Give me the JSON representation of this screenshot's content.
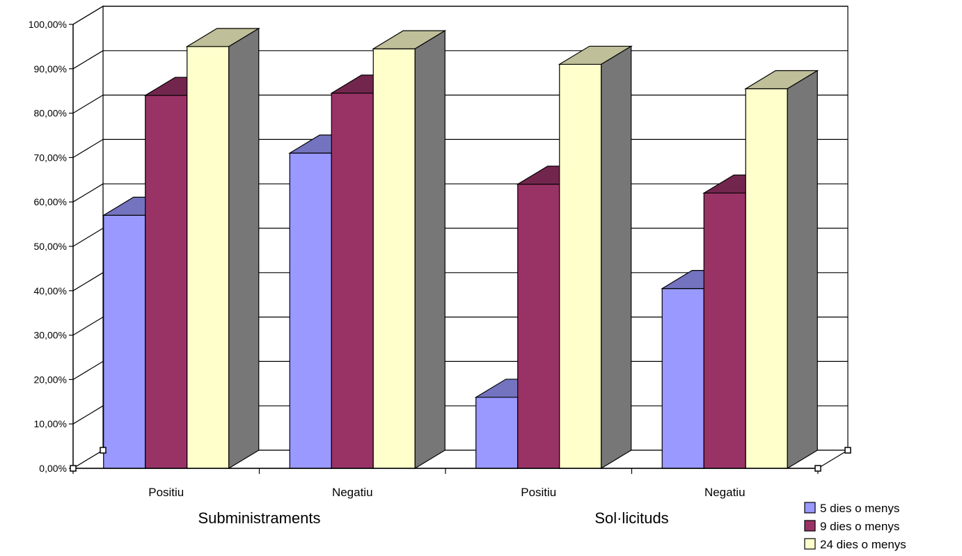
{
  "chart_data": {
    "type": "bar",
    "style": "3d-clustered-column",
    "y_tick_labels": [
      "0,00%",
      "10,00%",
      "20,00%",
      "30,00%",
      "40,00%",
      "50,00%",
      "60,00%",
      "70,00%",
      "80,00%",
      "90,00%",
      "100,00%"
    ],
    "ylim": [
      0,
      100
    ],
    "grid": true,
    "categories": [
      "Positiu",
      "Negatiu",
      "Positiu",
      "Negatiu"
    ],
    "groups": [
      {
        "label": "Subministraments",
        "categories": [
          "Positiu",
          "Negatiu"
        ]
      },
      {
        "label": "Sol·licituds",
        "categories": [
          "Positiu",
          "Negatiu"
        ]
      }
    ],
    "series": [
      {
        "name": "5 dies o menys",
        "color": "#9999ff",
        "values": [
          57,
          71,
          16,
          40.5
        ]
      },
      {
        "name": "9 dies o menys",
        "color": "#993366",
        "values": [
          84,
          84.5,
          64,
          62
        ]
      },
      {
        "name": "24 dies o menys",
        "color": "#ffffcc",
        "values": [
          95,
          94.5,
          91,
          85.5
        ]
      }
    ],
    "legend_position": "bottom-right"
  }
}
